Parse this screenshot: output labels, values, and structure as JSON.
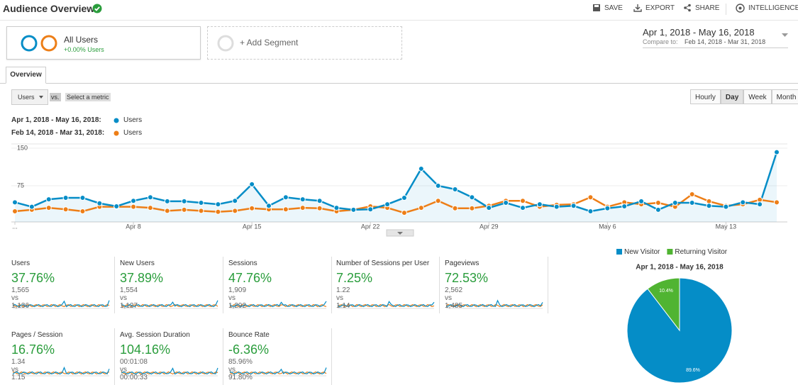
{
  "header": {
    "title": "Audience Overview",
    "actions": [
      "SAVE",
      "EXPORT",
      "SHARE",
      "INTELLIGENCE"
    ]
  },
  "segments": {
    "active": {
      "name": "All Users",
      "change": "+0.00% Users"
    },
    "add": "+ Add Segment"
  },
  "date_range": {
    "range": "Apr 1, 2018 - May 16, 2018",
    "compare_label": "Compare to:",
    "compare_range": "Feb 14, 2018 - Mar 31, 2018"
  },
  "tabs": [
    "Overview"
  ],
  "controls": {
    "metric": "Users",
    "vs": "vs.",
    "secondary": "Select a metric",
    "granularity": [
      "Hourly",
      "Day",
      "Week",
      "Month"
    ]
  },
  "chart_data": [
    {
      "type": "line",
      "categories": [
        "...",
        null,
        null,
        null,
        null,
        null,
        null,
        "Apr 8",
        null,
        null,
        null,
        null,
        null,
        null,
        "Apr 15",
        null,
        null,
        null,
        null,
        null,
        null,
        "Apr 22",
        null,
        null,
        null,
        null,
        null,
        null,
        "Apr 29",
        null,
        null,
        null,
        null,
        null,
        null,
        "May 6",
        null,
        null,
        null,
        null,
        null,
        null,
        "May 13",
        null,
        null,
        null
      ],
      "ylim": [
        0,
        150
      ],
      "yticks": [
        75,
        150
      ],
      "series": [
        {
          "name": "Users",
          "period": "Apr 1, 2018 - May 16, 2018:",
          "color": "#058dc7",
          "values": [
            42,
            33,
            48,
            51,
            51,
            40,
            34,
            45,
            52,
            44,
            44,
            41,
            38,
            45,
            78,
            35,
            52,
            48,
            45,
            31,
            27,
            28,
            38,
            51,
            109,
            75,
            68,
            52,
            31,
            41,
            31,
            38,
            33,
            35,
            24,
            30,
            34,
            44,
            27,
            41,
            41,
            35,
            33,
            42,
            38,
            142
          ]
        },
        {
          "name": "Users",
          "period": "Feb 14, 2018 - Mar 31, 2018:",
          "color": "#ed7e17",
          "values": [
            24,
            27,
            31,
            28,
            24,
            33,
            33,
            33,
            31,
            25,
            27,
            25,
            23,
            25,
            30,
            28,
            28,
            31,
            30,
            24,
            27,
            34,
            31,
            21,
            31,
            45,
            30,
            30,
            35,
            45,
            45,
            33,
            37,
            38,
            52,
            33,
            42,
            38,
            41,
            33,
            58,
            44,
            35,
            38,
            47,
            42
          ]
        }
      ]
    },
    {
      "type": "pie",
      "title": "Apr 1, 2018 - May 16, 2018",
      "categories": [
        "New Visitor",
        "Returning Visitor"
      ],
      "values": [
        89.6,
        10.4
      ],
      "value_labels": [
        "89.6%",
        "10.4%"
      ],
      "colors": [
        "#058dc7",
        "#50b432"
      ]
    }
  ],
  "metrics": [
    {
      "name": "Users",
      "change": "37.76%",
      "comparison": "1,565 vs 1,136"
    },
    {
      "name": "New Users",
      "change": "37.89%",
      "comparison": "1,554 vs 1,127"
    },
    {
      "name": "Sessions",
      "change": "47.76%",
      "comparison": "1,909 vs 1,292"
    },
    {
      "name": "Number of Sessions per User",
      "change": "7.25%",
      "comparison": "1.22 vs 1.14"
    },
    {
      "name": "Pageviews",
      "change": "72.53%",
      "comparison": "2,562 vs 1,485"
    },
    {
      "name": "Pages / Session",
      "change": "16.76%",
      "comparison": "1.34 vs 1.15"
    },
    {
      "name": "Avg. Session Duration",
      "change": "104.16%",
      "comparison": "00:01:08 vs 00:00:33"
    },
    {
      "name": "Bounce Rate",
      "change": "-6.36%",
      "comparison": "85.96% vs 91.80%"
    }
  ]
}
